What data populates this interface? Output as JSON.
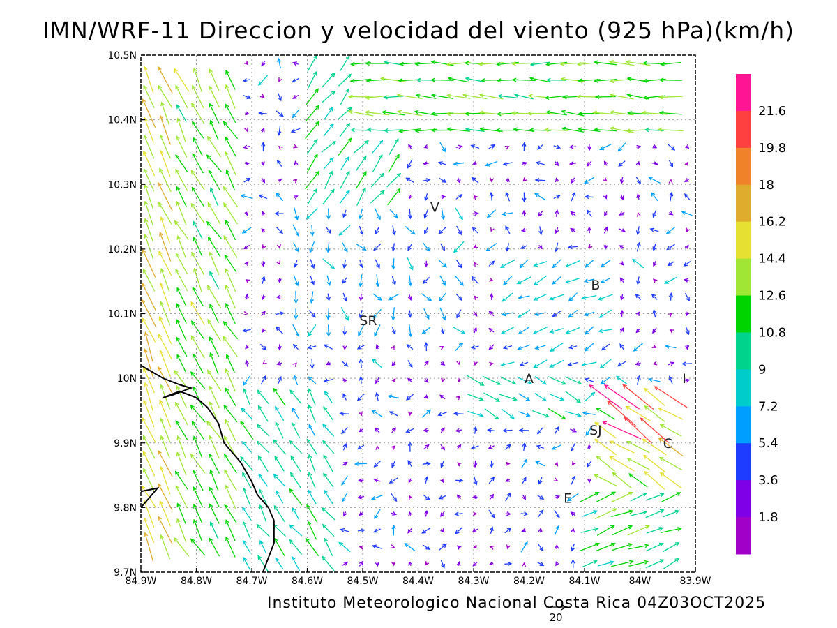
{
  "title": "IMN/WRF-11 Direccion y velocidad del viento (925 hPa)(km/h)",
  "credit": "Instituto Meteorologico Nacional Costa Rica 04Z03OCT2025",
  "chart_data": {
    "type": "vector-field",
    "x_ticks": [
      "84.9W",
      "84.8W",
      "84.7W",
      "84.6W",
      "84.5W",
      "84.4W",
      "84.3W",
      "84.2W",
      "84.1W",
      "84W",
      "83.9W"
    ],
    "y_ticks": [
      "10.5N",
      "10.4N",
      "10.3N",
      "10.2N",
      "10.1N",
      "10N",
      "9.9N",
      "9.8N",
      "9.7N"
    ],
    "xlim": [
      -84.9,
      -83.9
    ],
    "ylim": [
      9.7,
      10.5
    ],
    "grid": true,
    "legend": "right",
    "reference_vector": "20",
    "colorbar": {
      "labels": [
        "21.6",
        "19.8",
        "18",
        "16.2",
        "14.4",
        "12.6",
        "10.8",
        "9",
        "7.2",
        "5.4",
        "3.6",
        "1.8"
      ],
      "colors": [
        "#ff1493",
        "#ff4040",
        "#f0832a",
        "#e0ac2e",
        "#e6e033",
        "#a0e634",
        "#00d400",
        "#00d48c",
        "#00cccc",
        "#009fff",
        "#1e3cff",
        "#7f00e6",
        "#a000c8"
      ]
    },
    "places": [
      {
        "label": "V",
        "lon": -84.37,
        "lat": 10.265
      },
      {
        "label": "B",
        "lon": -84.08,
        "lat": 10.145
      },
      {
        "label": "SR",
        "lon": -84.49,
        "lat": 10.09
      },
      {
        "label": "A",
        "lon": -84.2,
        "lat": 10.0
      },
      {
        "label": "I",
        "lon": -83.92,
        "lat": 10.0
      },
      {
        "label": "SJ",
        "lon": -84.08,
        "lat": 9.92
      },
      {
        "label": "C",
        "lon": -83.95,
        "lat": 9.9
      },
      {
        "label": "E",
        "lon": -84.13,
        "lat": 9.815
      }
    ],
    "coastline_lonlat": [
      [
        -84.9,
        10.02
      ],
      [
        -84.86,
        10.0
      ],
      [
        -84.83,
        9.99
      ],
      [
        -84.81,
        9.985
      ],
      [
        -84.84,
        9.975
      ],
      [
        -84.86,
        9.97
      ],
      [
        -84.83,
        9.98
      ],
      [
        -84.8,
        9.97
      ],
      [
        -84.78,
        9.955
      ],
      [
        -84.76,
        9.93
      ],
      [
        -84.75,
        9.9
      ],
      [
        -84.74,
        9.89
      ],
      [
        -84.72,
        9.87
      ],
      [
        -84.7,
        9.84
      ],
      [
        -84.69,
        9.82
      ],
      [
        -84.67,
        9.8
      ],
      [
        -84.66,
        9.78
      ],
      [
        -84.66,
        9.745
      ],
      [
        -84.68,
        9.7
      ]
    ],
    "coastline2_lonlat": [
      [
        -84.9,
        9.825
      ],
      [
        -84.87,
        9.83
      ],
      [
        -84.9,
        9.8
      ]
    ]
  }
}
